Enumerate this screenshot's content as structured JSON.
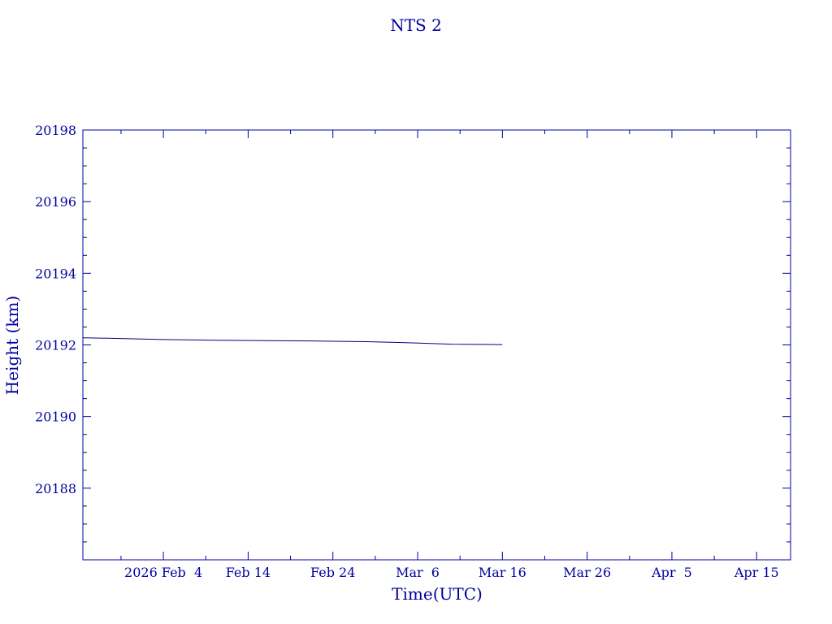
{
  "chart_data": {
    "type": "line",
    "title": "NTS 2",
    "xlabel": "Time(UTC)",
    "ylabel": "Height (km)",
    "x_tick_labels": [
      "2026 Feb  4",
      "Feb 14",
      "Feb 24",
      "Mar  6",
      "Mar 16",
      "Mar 26",
      "Apr  5",
      "Apr 15"
    ],
    "x_tick_dates": [
      "2026-02-04",
      "2026-02-14",
      "2026-02-24",
      "2026-03-06",
      "2026-03-16",
      "2026-03-26",
      "2026-04-05",
      "2026-04-15"
    ],
    "xlim": [
      "2026-01-25T12:00",
      "2026-04-19"
    ],
    "y_ticks": [
      20188,
      20190,
      20192,
      20194,
      20196,
      20198
    ],
    "y_tick_labels": [
      "20188",
      "20190",
      "20192",
      "20194",
      "20196",
      "20198"
    ],
    "ylim": [
      20186.0,
      20198.0
    ],
    "grid": false,
    "colors": {
      "axis": "#0000a0",
      "line": "#000080"
    },
    "series": [
      {
        "x": [
          "2026-01-25T12:00",
          "2026-01-30",
          "2026-02-04",
          "2026-02-10",
          "2026-02-16",
          "2026-02-22",
          "2026-02-28",
          "2026-03-05",
          "2026-03-10",
          "2026-03-16"
        ],
        "y": [
          20192.2,
          20192.18,
          20192.15,
          20192.13,
          20192.12,
          20192.11,
          20192.09,
          20192.06,
          20192.02,
          20192.01
        ]
      }
    ]
  }
}
